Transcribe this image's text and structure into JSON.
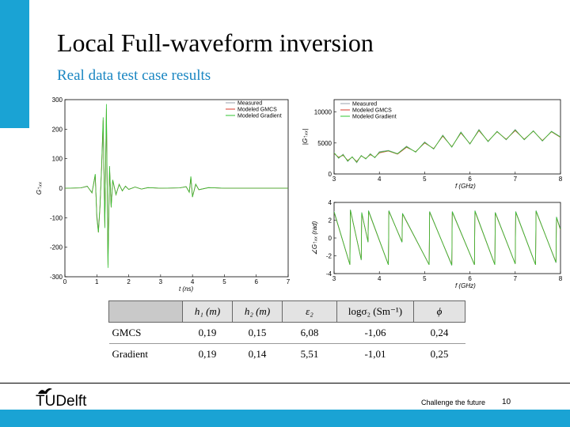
{
  "slide": {
    "title": "Local Full-waveform inversion",
    "subtitle": "Real data test case results",
    "footer": {
      "logo_text": "TUDelft",
      "slogan": "Challenge the future",
      "page_number": "10"
    }
  },
  "colors": {
    "measured": "#9aa0ad",
    "gmcs": "#d83a2a",
    "gradient": "#31c431",
    "accent": "#1aa3d4",
    "subtitle": "#1a86c2"
  },
  "chart_data": [
    {
      "type": "line",
      "id": "time-domain",
      "xlabel": "t (ns)",
      "ylabel": "G↑ₓₓ",
      "xlim": [
        0,
        7
      ],
      "ylim": [
        -300,
        300
      ],
      "xticks": [
        "0",
        "1",
        "2",
        "3",
        "4",
        "5",
        "6",
        "7"
      ],
      "yticks": [
        "300",
        "200",
        "100",
        "0",
        "-100",
        "-200",
        "-300"
      ],
      "legend": {
        "position": "top-right",
        "entries": [
          "Measured",
          "Modeled GMCS",
          "Modeled Gradient"
        ]
      },
      "series": [
        {
          "name": "Measured",
          "x": [
            0,
            0.5,
            0.7,
            0.85,
            0.95,
            1.0,
            1.05,
            1.1,
            1.15,
            1.2,
            1.25,
            1.3,
            1.35,
            1.4,
            1.45,
            1.5,
            1.6,
            1.7,
            1.8,
            1.9,
            2.0,
            2.2,
            2.4,
            2.6,
            3.0,
            3.6,
            3.8,
            3.9,
            3.95,
            4.0,
            4.1,
            4.2,
            4.5,
            5.0,
            5.5,
            6.0,
            6.5,
            7.0
          ],
          "y": [
            0,
            1,
            6,
            -14,
            40,
            -90,
            -140,
            -60,
            60,
            210,
            -120,
            250,
            -240,
            60,
            -60,
            25,
            -20,
            12,
            -8,
            6,
            -4,
            4,
            -3,
            2,
            0,
            1,
            5,
            -12,
            35,
            -28,
            12,
            -5,
            2,
            0,
            0,
            0,
            0,
            0
          ]
        },
        {
          "name": "Modeled GMCS",
          "x": [
            0,
            0.5,
            0.7,
            0.85,
            0.95,
            1.0,
            1.05,
            1.1,
            1.15,
            1.2,
            1.25,
            1.3,
            1.35,
            1.4,
            1.45,
            1.5,
            1.6,
            1.7,
            1.8,
            1.9,
            2.0,
            2.2,
            2.4,
            2.6,
            3.0,
            3.6,
            3.8,
            3.9,
            3.95,
            4.0,
            4.1,
            4.2,
            4.5,
            5.0,
            5.5,
            6.0,
            6.5,
            7.0
          ],
          "y": [
            0,
            1,
            7,
            -16,
            45,
            -95,
            -150,
            -65,
            70,
            230,
            -130,
            270,
            -260,
            70,
            -65,
            28,
            -22,
            13,
            -9,
            7,
            -4,
            4,
            -3,
            2,
            0,
            1,
            5,
            -14,
            38,
            -30,
            13,
            -5,
            2,
            0,
            0,
            0,
            0,
            0
          ]
        },
        {
          "name": "Modeled Gradient",
          "x": [
            0,
            0.5,
            0.7,
            0.85,
            0.95,
            1.0,
            1.05,
            1.1,
            1.15,
            1.2,
            1.25,
            1.3,
            1.35,
            1.4,
            1.45,
            1.5,
            1.6,
            1.7,
            1.8,
            1.9,
            2.0,
            2.2,
            2.4,
            2.6,
            3.0,
            3.6,
            3.8,
            3.9,
            3.95,
            4.0,
            4.1,
            4.2,
            4.5,
            5.0,
            5.5,
            6.0,
            6.5,
            7.0
          ],
          "y": [
            0,
            1,
            7,
            -16,
            48,
            -100,
            -150,
            -60,
            70,
            240,
            -135,
            285,
            -270,
            75,
            -65,
            28,
            -22,
            13,
            -9,
            7,
            -4,
            4,
            -3,
            2,
            0,
            1,
            5,
            -14,
            40,
            -30,
            14,
            -5,
            2,
            0,
            0,
            0,
            0,
            0
          ]
        }
      ]
    },
    {
      "type": "line",
      "id": "amplitude",
      "xlabel": "f (GHz)",
      "ylabel": "|G↑ₓₓ|",
      "xlim": [
        3,
        8
      ],
      "ylim": [
        0,
        12000
      ],
      "xticks": [
        "3",
        "4",
        "5",
        "6",
        "7",
        "8"
      ],
      "yticks": [
        "10000",
        "5000",
        "0"
      ],
      "legend": {
        "position": "top-left",
        "entries": [
          "Measured",
          "Modeled GMCS",
          "Modeled Gradient"
        ]
      },
      "series": [
        {
          "name": "Measured",
          "x": [
            3,
            3.1,
            3.2,
            3.3,
            3.4,
            3.5,
            3.6,
            3.7,
            3.8,
            3.9,
            4,
            4.2,
            4.4,
            4.6,
            4.8,
            5,
            5.2,
            5.4,
            5.6,
            5.8,
            6,
            6.2,
            6.4,
            6.6,
            6.8,
            7,
            7.2,
            7.4,
            7.6,
            7.8,
            8
          ],
          "y": [
            3500,
            2500,
            3200,
            2000,
            2800,
            1800,
            3000,
            2400,
            3300,
            2600,
            3600,
            3800,
            3300,
            4500,
            3500,
            5200,
            4000,
            6300,
            4300,
            6800,
            4800,
            7200,
            5200,
            6900,
            5500,
            7200,
            5500,
            7000,
            5300,
            6900,
            6000
          ]
        },
        {
          "name": "Modeled GMCS",
          "x": [
            3,
            3.1,
            3.2,
            3.3,
            3.4,
            3.5,
            3.6,
            3.7,
            3.8,
            3.9,
            4,
            4.2,
            4.4,
            4.6,
            4.8,
            5,
            5.2,
            5.4,
            5.6,
            5.8,
            6,
            6.2,
            6.4,
            6.6,
            6.8,
            7,
            7.2,
            7.4,
            7.6,
            7.8,
            8
          ],
          "y": [
            3300,
            2700,
            3000,
            2200,
            2700,
            2000,
            2900,
            2500,
            3100,
            2700,
            3400,
            3700,
            3200,
            4300,
            3600,
            5000,
            4100,
            6100,
            4400,
            6600,
            4900,
            7000,
            5300,
            6800,
            5600,
            7000,
            5600,
            6900,
            5400,
            6800,
            5900
          ]
        },
        {
          "name": "Modeled Gradient",
          "x": [
            3,
            3.1,
            3.2,
            3.3,
            3.4,
            3.5,
            3.6,
            3.7,
            3.8,
            3.9,
            4,
            4.2,
            4.4,
            4.6,
            4.8,
            5,
            5.2,
            5.4,
            5.6,
            5.8,
            6,
            6.2,
            6.4,
            6.6,
            6.8,
            7,
            7.2,
            7.4,
            7.6,
            7.8,
            8
          ],
          "y": [
            3400,
            2600,
            3100,
            2100,
            2750,
            1900,
            2950,
            2450,
            3200,
            2650,
            3500,
            3750,
            3250,
            4400,
            3550,
            5100,
            4050,
            6200,
            4350,
            6700,
            4850,
            7100,
            5250,
            6850,
            5550,
            7100,
            5550,
            6950,
            5350,
            6850,
            5950
          ]
        }
      ]
    },
    {
      "type": "line",
      "id": "phase",
      "xlabel": "f (GHz)",
      "ylabel": "∠G↑ₓₓ (rad)",
      "xlim": [
        3,
        8
      ],
      "ylim": [
        -4,
        4
      ],
      "xticks": [
        "3",
        "4",
        "5",
        "6",
        "7",
        "8"
      ],
      "yticks": [
        "4",
        "2",
        "0",
        "-2",
        "-4"
      ],
      "series": [
        {
          "name": "Measured",
          "x": [
            3.0,
            3.35,
            3.36,
            3.6,
            3.61,
            3.75,
            3.76,
            4.2,
            4.21,
            4.5,
            4.51,
            5.1,
            5.11,
            5.6,
            5.61,
            6.1,
            6.11,
            6.55,
            6.56,
            7.0,
            7.01,
            7.45,
            7.46,
            7.9,
            7.91,
            8.0
          ],
          "y": [
            3.0,
            -3.0,
            3.2,
            -2.5,
            2.9,
            -0.5,
            3.1,
            -3.0,
            3.1,
            -0.5,
            2.8,
            -3.0,
            3.0,
            -3.1,
            3.0,
            -3.0,
            3.1,
            -3.0,
            2.9,
            -2.9,
            3.0,
            -3.0,
            3.1,
            -2.8,
            2.4,
            1.0
          ]
        },
        {
          "name": "Modeled GMCS",
          "x": [
            3.0,
            3.35,
            3.36,
            3.6,
            3.61,
            3.75,
            3.76,
            4.2,
            4.21,
            4.5,
            4.51,
            5.1,
            5.11,
            5.6,
            5.61,
            6.1,
            6.11,
            6.55,
            6.56,
            7.0,
            7.01,
            7.45,
            7.46,
            7.9,
            7.91,
            8.0
          ],
          "y": [
            2.9,
            -3.0,
            3.1,
            -2.4,
            2.8,
            -0.4,
            3.0,
            -3.0,
            3.0,
            -0.4,
            2.7,
            -3.0,
            2.9,
            -3.0,
            2.9,
            -3.0,
            3.0,
            -3.0,
            2.8,
            -2.9,
            2.9,
            -3.0,
            3.0,
            -2.7,
            2.3,
            0.9
          ]
        },
        {
          "name": "Modeled Gradient",
          "x": [
            3.0,
            3.35,
            3.36,
            3.6,
            3.61,
            3.75,
            3.76,
            4.2,
            4.21,
            4.5,
            4.51,
            5.1,
            5.11,
            5.6,
            5.61,
            6.1,
            6.11,
            6.55,
            6.56,
            7.0,
            7.01,
            7.45,
            7.46,
            7.9,
            7.91,
            8.0
          ],
          "y": [
            2.95,
            -3.0,
            3.15,
            -2.45,
            2.85,
            -0.45,
            3.05,
            -3.0,
            3.05,
            -0.45,
            2.75,
            -3.0,
            2.95,
            -3.05,
            2.95,
            -3.0,
            3.05,
            -3.0,
            2.85,
            -2.9,
            2.95,
            -3.0,
            3.05,
            -2.75,
            2.35,
            0.95
          ]
        }
      ]
    }
  ],
  "results_table": {
    "headers": [
      "h₁ (m)",
      "h₂ (m)",
      "ε₂",
      "logσ₂ (Sm⁻¹)",
      "ϕ"
    ],
    "rows": [
      {
        "label": "GMCS",
        "values": [
          "0,19",
          "0,15",
          "6,08",
          "-1,06",
          "0,24"
        ]
      },
      {
        "label": "Gradient",
        "values": [
          "0,19",
          "0,14",
          "5,51",
          "-1,01",
          "0,25"
        ]
      }
    ]
  }
}
